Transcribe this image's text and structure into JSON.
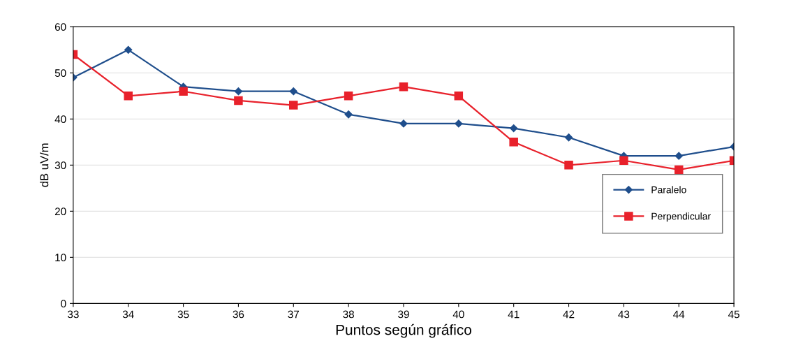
{
  "chart_data": {
    "type": "line",
    "xlabel": "Puntos según gráfico",
    "ylabel": "dB uV/m",
    "x": [
      33,
      34,
      35,
      36,
      37,
      38,
      39,
      40,
      41,
      42,
      43,
      44,
      45
    ],
    "series": [
      {
        "name": "Paralelo",
        "color": "#1f4e8c",
        "marker": "diamond",
        "values": [
          49,
          55,
          47,
          46,
          46,
          41,
          39,
          39,
          38,
          36,
          32,
          32,
          34
        ]
      },
      {
        "name": "Perpendicular",
        "color": "#e8212b",
        "marker": "square",
        "values": [
          54,
          45,
          46,
          44,
          43,
          45,
          47,
          45,
          35,
          30,
          31,
          29,
          31
        ]
      }
    ],
    "xlim": [
      33,
      45
    ],
    "xticks": [
      33,
      34,
      35,
      36,
      37,
      38,
      39,
      40,
      41,
      42,
      43,
      44,
      45
    ],
    "ylim": [
      0,
      60
    ],
    "yticks": [
      0,
      10,
      20,
      30,
      40,
      50,
      60
    ],
    "grid": "y",
    "legend": "right",
    "line_style": "solid"
  }
}
